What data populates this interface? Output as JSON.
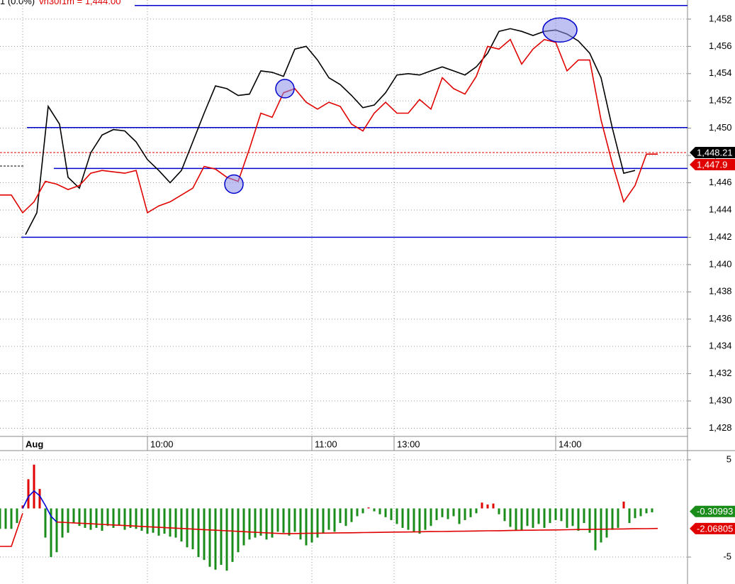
{
  "chart_data": [
    {
      "type": "line",
      "title": "1 (0.0%)",
      "subtitle": "vh30f1m = 1,444.00",
      "xlim": [
        0,
        242.5
      ],
      "xticks": [
        {
          "value": 8,
          "label": "Aug"
        },
        {
          "value": 52,
          "label": "10:00"
        },
        {
          "value": 110,
          "label": "11:00"
        },
        {
          "value": 139,
          "label": "13:00"
        },
        {
          "value": 196,
          "label": "14:00"
        }
      ],
      "ylim": [
        1427.4,
        1459.4
      ],
      "yticks": [
        {
          "value": 1428,
          "label": "1,428"
        },
        {
          "value": 1430,
          "label": "1,430"
        },
        {
          "value": 1432,
          "label": "1,432"
        },
        {
          "value": 1434,
          "label": "1,434"
        },
        {
          "value": 1436,
          "label": "1,436"
        },
        {
          "value": 1438,
          "label": "1,438"
        },
        {
          "value": 1440,
          "label": "1,440"
        },
        {
          "value": 1442,
          "label": "1,442"
        },
        {
          "value": 1444,
          "label": "1,444"
        },
        {
          "value": 1446,
          "label": "1,446"
        },
        {
          "value": 1448,
          "label": "1,448"
        },
        {
          "value": 1450,
          "label": "1,450"
        },
        {
          "value": 1452,
          "label": "1,452"
        },
        {
          "value": 1454,
          "label": "1,454"
        },
        {
          "value": 1456,
          "label": "1,456"
        },
        {
          "value": 1458,
          "label": "1,458"
        }
      ],
      "grid": true,
      "series": [
        {
          "color": "#000000",
          "x": [
            9,
            13,
            17,
            21,
            24,
            28,
            32,
            36,
            40,
            44,
            48,
            52,
            56,
            60,
            64,
            68,
            72,
            76,
            80,
            84,
            88,
            92,
            96,
            100,
            104,
            108,
            112,
            116,
            120,
            124,
            128,
            132,
            136,
            140,
            144,
            148,
            152,
            156,
            160,
            164,
            168,
            172,
            176,
            180,
            184,
            188,
            192,
            196,
            200,
            204,
            208,
            212,
            216,
            220,
            224
          ],
          "values": [
            1442.2,
            1443.8,
            1451.6,
            1450.3,
            1446.4,
            1445.6,
            1448.2,
            1449.5,
            1449.9,
            1449.8,
            1449.0,
            1447.7,
            1446.9,
            1446.0,
            1446.9,
            1449.0,
            1451.1,
            1453.1,
            1452.9,
            1452.4,
            1452.5,
            1454.2,
            1454.1,
            1453.8,
            1455.8,
            1456.0,
            1455.0,
            1453.7,
            1453.2,
            1452.4,
            1451.5,
            1451.7,
            1452.6,
            1453.9,
            1454.0,
            1453.9,
            1454.2,
            1454.5,
            1454.2,
            1453.9,
            1454.5,
            1455.5,
            1457.1,
            1457.3,
            1457.1,
            1456.8,
            1457.1,
            1457.2,
            1456.9,
            1456.4,
            1455.5,
            1453.7,
            1450.0,
            1446.7,
            1446.9
          ]
        },
        {
          "color": "#e00000",
          "x": [
            0,
            4,
            8,
            12,
            16,
            20,
            24,
            28,
            32,
            36,
            40,
            44,
            48,
            52,
            56,
            60,
            64,
            68,
            72,
            76,
            80,
            84,
            88,
            92,
            96,
            100,
            104,
            108,
            112,
            116,
            120,
            124,
            128,
            132,
            136,
            140,
            144,
            148,
            152,
            156,
            160,
            164,
            168,
            172,
            176,
            180,
            184,
            188,
            192,
            196,
            200,
            204,
            208,
            212,
            216,
            220,
            224,
            228,
            232
          ],
          "values": [
            1445.1,
            1445.1,
            1443.8,
            1444.6,
            1446.1,
            1445.9,
            1445.5,
            1445.8,
            1446.7,
            1446.9,
            1446.8,
            1446.7,
            1446.9,
            1443.8,
            1444.3,
            1444.6,
            1445.1,
            1445.6,
            1447.2,
            1447.0,
            1446.4,
            1446.1,
            1448.5,
            1451.1,
            1450.8,
            1452.6,
            1452.9,
            1451.9,
            1451.4,
            1451.9,
            1451.6,
            1450.3,
            1449.8,
            1451.1,
            1451.9,
            1451.1,
            1451.1,
            1452.1,
            1451.4,
            1453.7,
            1452.9,
            1452.5,
            1453.8,
            1456.0,
            1455.8,
            1456.5,
            1454.7,
            1455.8,
            1456.5,
            1456.3,
            1454.2,
            1455.0,
            1455.0,
            1450.6,
            1447.4,
            1444.6,
            1445.8,
            1448.1,
            1448.1
          ]
        }
      ],
      "levels": {
        "color": "#0000cc",
        "values": [
          1459.0,
          1450.05,
          1447.05,
          1442.0
        ],
        "starts": [
          47.5,
          9.5,
          19,
          7.5
        ]
      },
      "highlights": {
        "color": "#8a8ee8",
        "x": [
          82.5,
          100.5,
          197.5
        ],
        "values": [
          1445.9,
          1452.9,
          1457.2
        ]
      },
      "price_tags": {
        "values": [
          1448.21,
          1447.9
        ],
        "value_labels": [
          "1,448.21",
          "1,447.9"
        ],
        "colors": [
          "#000000",
          "#e00000"
        ]
      }
    },
    {
      "type": "histogram-oscillator",
      "ylim": [
        -7.77,
        5.58
      ],
      "yticks": [
        5,
        -5
      ],
      "up_color": "#e00000",
      "down_color": "#1a8c1a",
      "x": [
        0,
        2,
        4,
        6,
        8,
        10,
        12,
        14,
        16,
        18,
        20,
        22,
        24,
        26,
        28,
        30,
        32,
        34,
        36,
        38,
        40,
        42,
        44,
        46,
        48,
        50,
        52,
        54,
        56,
        58,
        60,
        62,
        64,
        66,
        68,
        70,
        72,
        74,
        76,
        78,
        80,
        82,
        84,
        86,
        88,
        90,
        92,
        94,
        96,
        98,
        100,
        102,
        104,
        106,
        108,
        110,
        112,
        114,
        116,
        118,
        120,
        122,
        124,
        126,
        128,
        130,
        132,
        134,
        136,
        138,
        140,
        142,
        144,
        146,
        148,
        150,
        152,
        154,
        156,
        158,
        160,
        162,
        164,
        166,
        168,
        170,
        172,
        174,
        176,
        178,
        180,
        182,
        184,
        186,
        188,
        190,
        192,
        194,
        196,
        198,
        200,
        202,
        204,
        206,
        208,
        210,
        212,
        214,
        216,
        218,
        220,
        222,
        224,
        226,
        228,
        230
      ],
      "values": [
        -2.1,
        -2.1,
        -2.1,
        -1.5,
        0.3,
        3,
        4.5,
        2,
        -3,
        -5,
        -4.5,
        -3,
        -2.5,
        -1.5,
        -1.8,
        -2,
        -2.2,
        -2,
        -2.3,
        -1.8,
        -2,
        -1.7,
        -2.2,
        -2,
        -2.1,
        -2.3,
        -2.6,
        -2.5,
        -2.8,
        -2.6,
        -2.9,
        -3,
        -3.4,
        -4,
        -4.2,
        -5,
        -5.3,
        -6,
        -6.3,
        -5.8,
        -6.4,
        -5.5,
        -4.5,
        -3.8,
        -3.2,
        -3,
        -2.8,
        -3.2,
        -3,
        -2.4,
        -2.5,
        -2.8,
        -2.4,
        -3.2,
        -3.8,
        -3.5,
        -3,
        -2.5,
        -2.2,
        -2.4,
        -1.5,
        -1.8,
        -1.4,
        -0.8,
        -0.5,
        0.1,
        -0.3,
        -0.6,
        -0.9,
        -1.2,
        -1.6,
        -2,
        -2.2,
        -2.4,
        -2.6,
        -2.2,
        -1.8,
        -1.2,
        -0.9,
        -1.1,
        -0.8,
        -1.6,
        -1.2,
        -0.9,
        -0.5,
        0.6,
        0.4,
        0.5,
        -0.6,
        -1.3,
        -1.9,
        -2.3,
        -2.2,
        -1.8,
        -2,
        -1.6,
        -2,
        -1.5,
        -1.2,
        -1.3,
        -2,
        -1.8,
        -2.3,
        -1.5,
        -2.5,
        -4.3,
        -3.5,
        -3,
        -2.2,
        -2,
        0.7,
        -1.5,
        -1,
        -0.8,
        -0.5,
        -0.4
      ],
      "series": [
        {
          "color": "#e00000",
          "x": [
            0,
            4,
            8,
            12,
            16,
            20,
            24,
            28,
            32,
            36,
            40,
            44,
            48,
            52,
            56,
            60,
            64,
            68,
            72,
            76,
            80,
            84,
            88,
            92,
            96,
            100,
            104,
            108,
            112,
            116,
            120,
            124,
            128,
            132,
            136,
            140,
            144,
            148,
            152,
            156,
            160,
            164,
            168,
            172,
            176,
            180,
            184,
            188,
            192,
            196,
            200,
            204,
            208,
            212,
            216,
            220,
            224,
            228,
            232
          ],
          "values": [
            -3.9,
            -3.9,
            -0.5,
            null,
            null,
            -1.4,
            -1.46,
            -1.52,
            -1.58,
            -1.64,
            -1.7,
            -1.76,
            -1.82,
            -1.88,
            -1.94,
            -2.0,
            -2.06,
            -2.12,
            -2.18,
            -2.24,
            -2.3,
            -2.36,
            -2.42,
            -2.48,
            -2.54,
            -2.6,
            -2.58,
            -2.56,
            -2.55,
            -2.53,
            -2.51,
            -2.5,
            -2.48,
            -2.47,
            -2.45,
            -2.43,
            -2.42,
            -2.4,
            -2.38,
            -2.37,
            -2.35,
            -2.34,
            -2.32,
            -2.3,
            -2.29,
            -2.27,
            -2.25,
            -2.24,
            -2.22,
            -2.21,
            -2.19,
            -2.17,
            -2.16,
            -2.14,
            -2.12,
            -2.11,
            -2.09,
            -2.08,
            -2.06
          ]
        },
        {
          "color": "#0000dd",
          "x": [
            8,
            10,
            12,
            14,
            16,
            18,
            20
          ],
          "values": [
            0,
            1.2,
            1.8,
            1.3,
            0.3,
            -0.8,
            -1.4
          ]
        }
      ],
      "price_tags": {
        "values": [
          -0.30993,
          -2.06805
        ],
        "value_labels": [
          "-0.30993",
          "-2.06805"
        ],
        "colors": [
          "#1a8c1a",
          "#e00000"
        ]
      }
    }
  ]
}
